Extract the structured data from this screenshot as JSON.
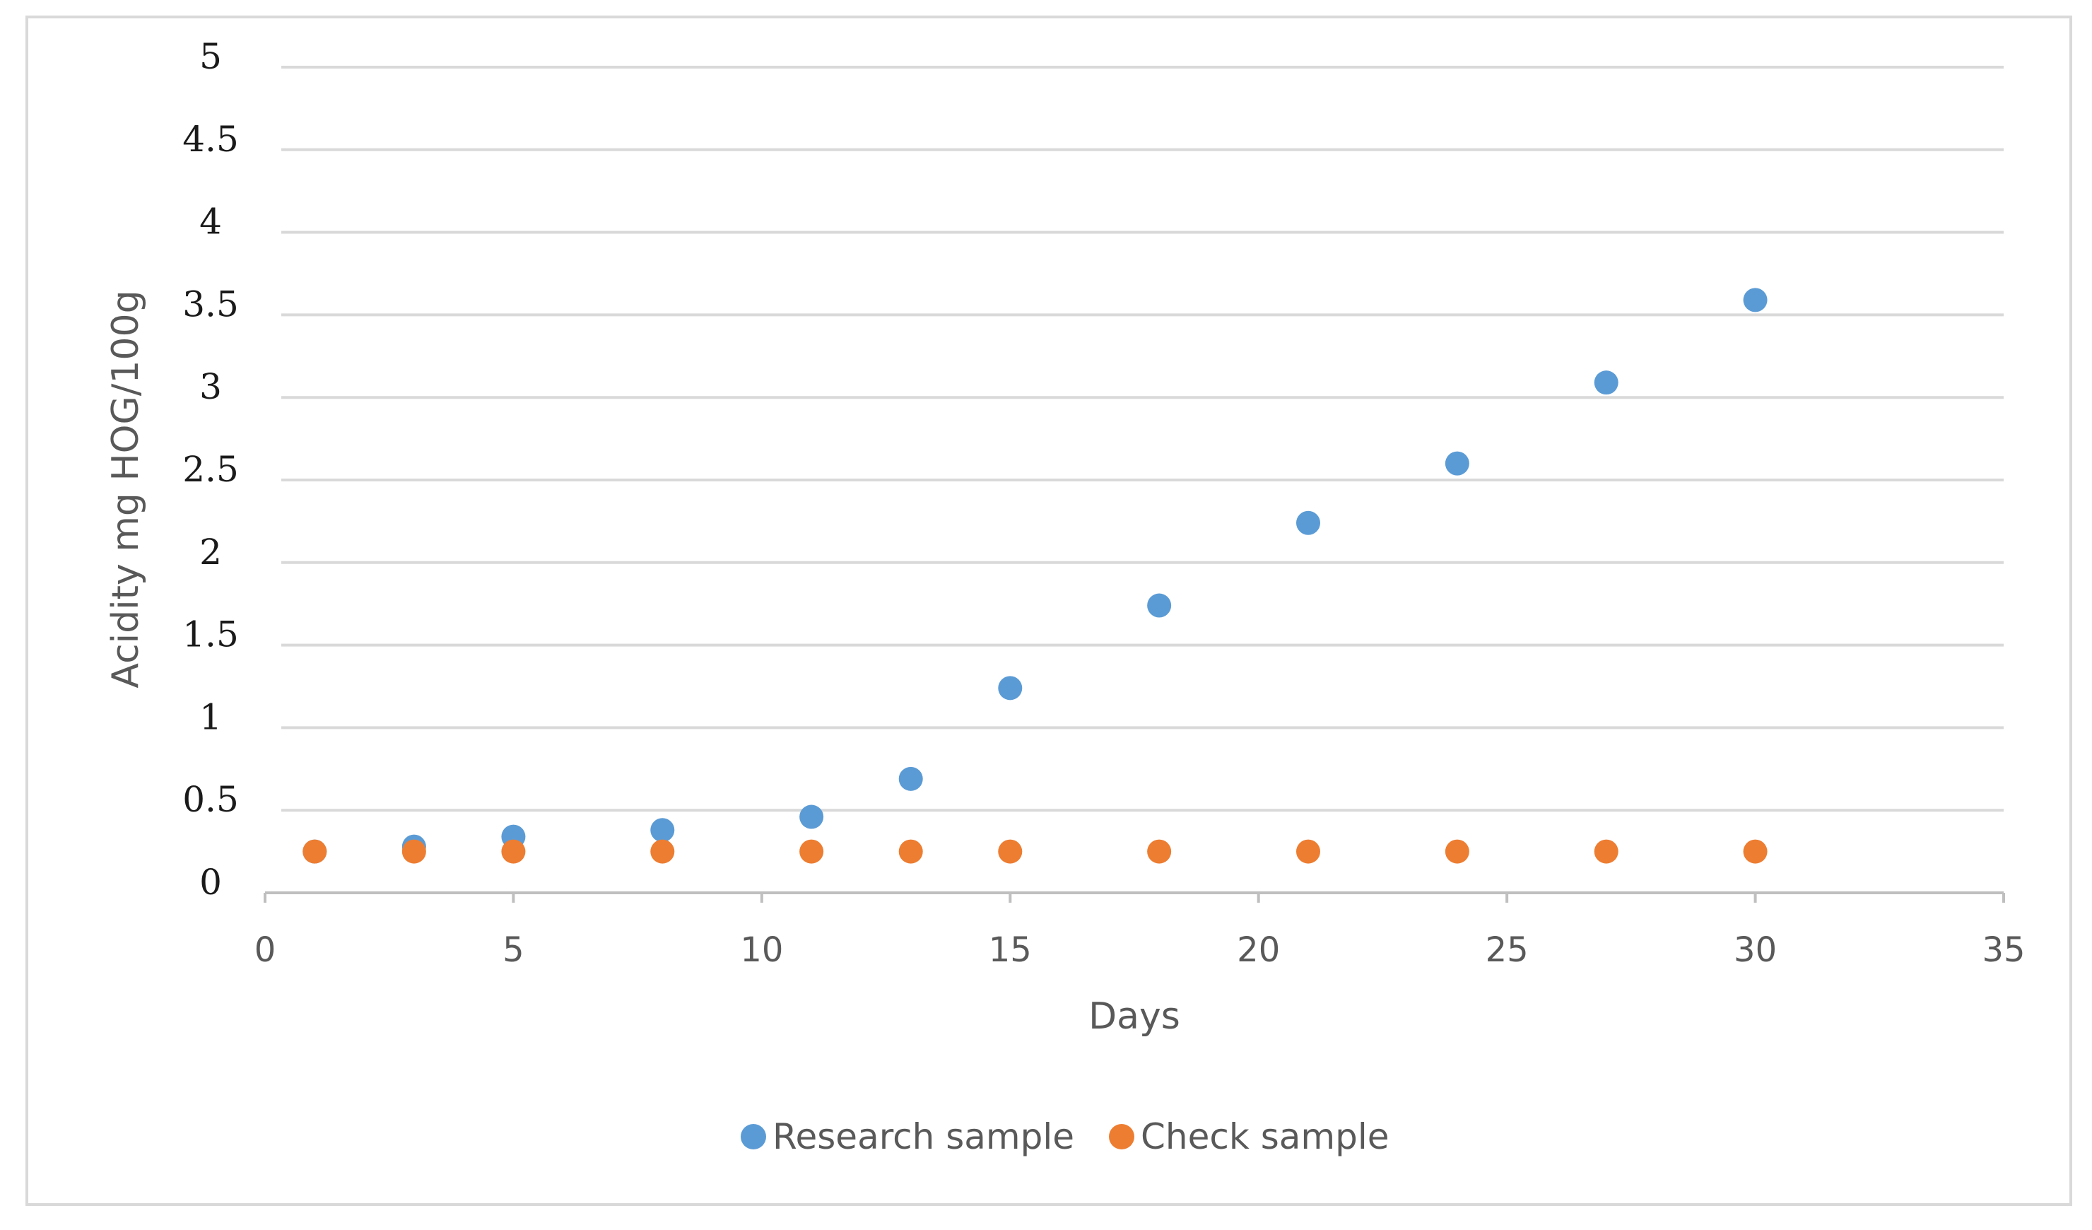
{
  "chart_data": {
    "type": "scatter",
    "title": "",
    "xlabel": "Days",
    "ylabel": "Acidity mg HOG/100g",
    "xlim": [
      0,
      35
    ],
    "ylim": [
      0,
      5
    ],
    "xticks": [
      "0",
      "5",
      "10",
      "15",
      "20",
      "25",
      "30",
      "35"
    ],
    "yticks": [
      "0",
      "0.5",
      "1",
      "1.5",
      "2",
      "2.5",
      "3",
      "3.5",
      "4",
      "4.5",
      "5"
    ],
    "grid": "horizontal",
    "legend_position": "bottom",
    "series": [
      {
        "name": "Research sample",
        "color": "#5B9BD5",
        "points": [
          {
            "x": 1,
            "y": 0.25
          },
          {
            "x": 3,
            "y": 0.28
          },
          {
            "x": 5,
            "y": 0.34
          },
          {
            "x": 8,
            "y": 0.38
          },
          {
            "x": 11,
            "y": 0.46
          },
          {
            "x": 13,
            "y": 0.69
          },
          {
            "x": 15,
            "y": 1.24
          },
          {
            "x": 18,
            "y": 1.74
          },
          {
            "x": 21,
            "y": 2.24
          },
          {
            "x": 24,
            "y": 2.6
          },
          {
            "x": 27,
            "y": 3.09
          },
          {
            "x": 30,
            "y": 3.59
          }
        ]
      },
      {
        "name": "Check sample",
        "color": "#ED7D31",
        "points": [
          {
            "x": 1,
            "y": 0.25
          },
          {
            "x": 3,
            "y": 0.25
          },
          {
            "x": 5,
            "y": 0.25
          },
          {
            "x": 8,
            "y": 0.25
          },
          {
            "x": 11,
            "y": 0.25
          },
          {
            "x": 13,
            "y": 0.25
          },
          {
            "x": 15,
            "y": 0.25
          },
          {
            "x": 18,
            "y": 0.25
          },
          {
            "x": 21,
            "y": 0.25
          },
          {
            "x": 24,
            "y": 0.25
          },
          {
            "x": 27,
            "y": 0.25
          },
          {
            "x": 30,
            "y": 0.25
          }
        ]
      }
    ]
  }
}
